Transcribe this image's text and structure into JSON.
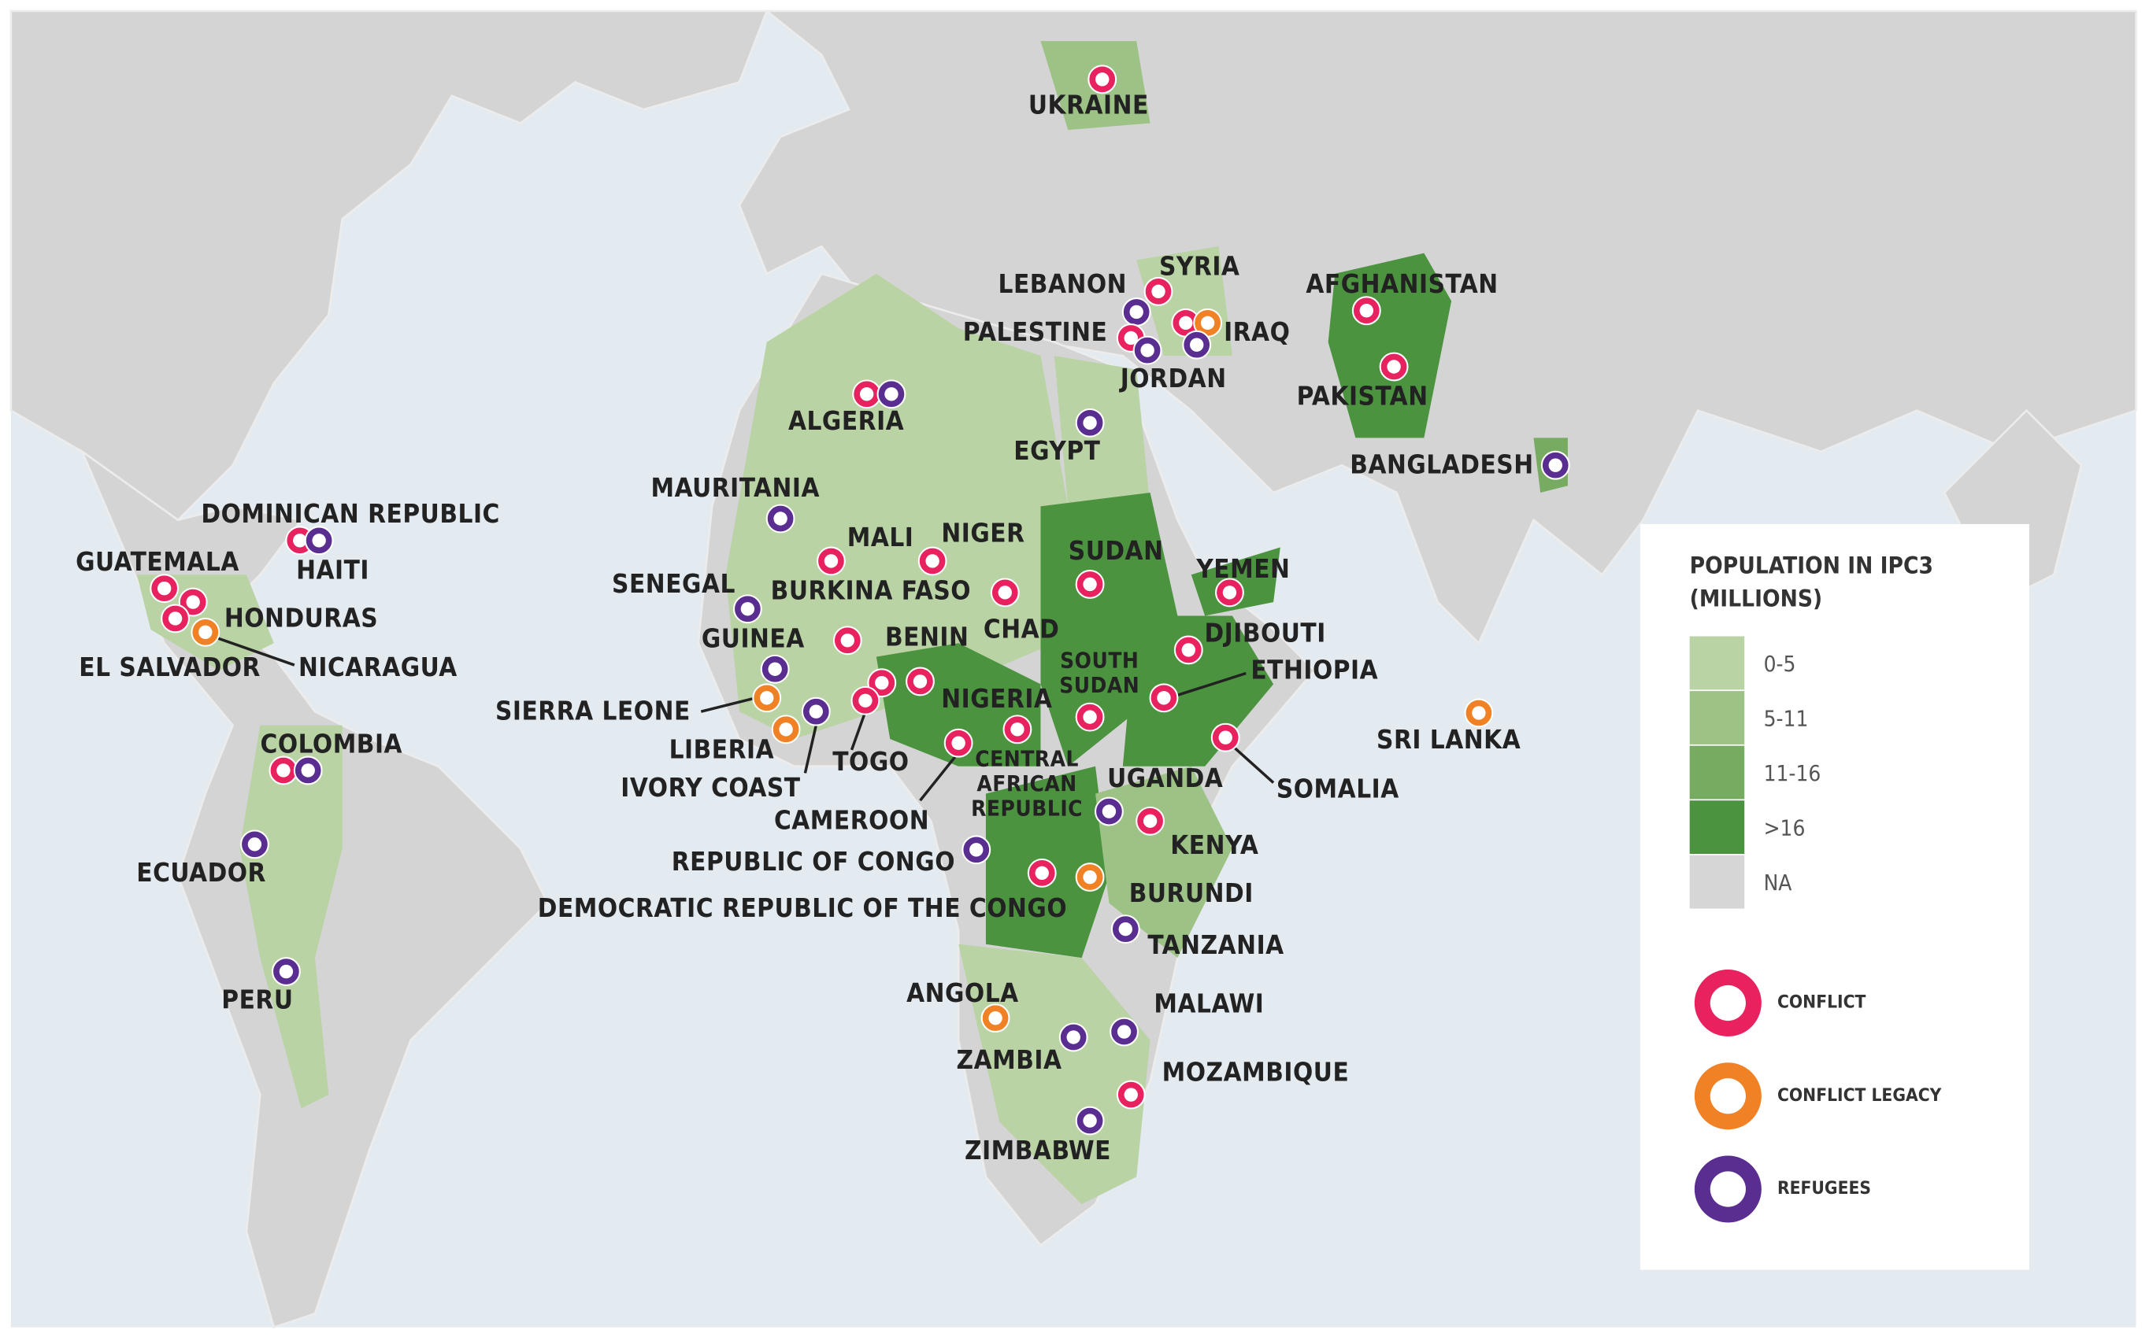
{
  "legend": {
    "title": "POPULATION IN IPC3 (MILLIONS)",
    "scale": [
      {
        "label": "0-5",
        "color": "#b9d3a4"
      },
      {
        "label": "5-11",
        "color": "#9dc286"
      },
      {
        "label": "11-16",
        "color": "#78ab62"
      },
      {
        "label": ">16",
        "color": "#4c9340"
      },
      {
        "label": "NA",
        "color": "#d6d6d6"
      }
    ],
    "markers": [
      {
        "label": "CONFLICT",
        "color": "#e8225f"
      },
      {
        "label": "CONFLICT LEGACY",
        "color": "#f08125"
      },
      {
        "label": "REFUGEES",
        "color": "#5a2d91"
      }
    ]
  },
  "countries": [
    {
      "label": "UKRAINE",
      "markers": [
        0
      ]
    },
    {
      "label": "LEBANON",
      "markers": [
        2
      ]
    },
    {
      "label": "SYRIA",
      "markers": [
        0
      ]
    },
    {
      "label": "IRAQ",
      "markers": [
        0,
        1
      ]
    },
    {
      "label": "PALESTINE",
      "markers": [
        0,
        2
      ]
    },
    {
      "label": "JORDAN",
      "markers": [
        2
      ]
    },
    {
      "label": "AFGHANISTAN",
      "markers": [
        0
      ]
    },
    {
      "label": "PAKISTAN",
      "markers": [
        0
      ]
    },
    {
      "label": "BANGLADESH",
      "markers": [
        2
      ]
    },
    {
      "label": "ALGERIA",
      "markers": [
        0,
        2
      ]
    },
    {
      "label": "EGYPT",
      "markers": [
        2
      ]
    },
    {
      "label": "MAURITANIA",
      "markers": [
        2
      ]
    },
    {
      "label": "DOMINICAN REPUBLIC",
      "markers": [
        0
      ]
    },
    {
      "label": "HAITI",
      "markers": [
        2
      ]
    },
    {
      "label": "GUATEMALA",
      "markers": [
        0
      ]
    },
    {
      "label": "HONDURAS",
      "markers": [
        0
      ]
    },
    {
      "label": "EL SALVADOR",
      "markers": [
        0
      ]
    },
    {
      "label": "NICARAGUA",
      "markers": [
        1
      ]
    },
    {
      "label": "MALI",
      "markers": [
        0
      ]
    },
    {
      "label": "NIGER",
      "markers": [
        0
      ]
    },
    {
      "label": "SUDAN",
      "markers": [
        0
      ]
    },
    {
      "label": "YEMEN",
      "markers": [
        0
      ]
    },
    {
      "label": "SENEGAL",
      "markers": [
        2
      ]
    },
    {
      "label": "BURKINA FASO",
      "markers": [
        0
      ]
    },
    {
      "label": "CHAD",
      "markers": [
        0
      ]
    },
    {
      "label": "BENIN",
      "markers": [
        0
      ]
    },
    {
      "label": "DJIBOUTI",
      "markers": [
        0
      ]
    },
    {
      "label": "GUINEA",
      "markers": [
        2
      ]
    },
    {
      "label": "SOUTH SUDAN",
      "markers": [
        0
      ]
    },
    {
      "label": "ETHIOPIA",
      "markers": [
        0
      ]
    },
    {
      "label": "SIERRA LEONE",
      "markers": [
        1
      ]
    },
    {
      "label": "LIBERIA",
      "markers": [
        1
      ]
    },
    {
      "label": "IVORY COAST",
      "markers": [
        2
      ]
    },
    {
      "label": "TOGO",
      "markers": [
        0
      ]
    },
    {
      "label": "NIGERIA",
      "markers": [
        0
      ]
    },
    {
      "label": "CAMEROON",
      "markers": [
        0
      ]
    },
    {
      "label": "CENTRAL AFRICAN REPUBLIC",
      "markers": [
        0
      ]
    },
    {
      "label": "SRI LANKA",
      "markers": [
        1
      ]
    },
    {
      "label": "COLOMBIA",
      "markers": [
        0,
        2
      ]
    },
    {
      "label": "UGANDA",
      "markers": [
        2
      ]
    },
    {
      "label": "SOMALIA",
      "markers": [
        0
      ]
    },
    {
      "label": "KENYA",
      "markers": [
        0
      ]
    },
    {
      "label": "ECUADOR",
      "markers": [
        2
      ]
    },
    {
      "label": "REPUBLIC OF CONGO",
      "markers": [
        2
      ]
    },
    {
      "label": "DEMOCRATIC REPUBLIC OF THE CONGO",
      "markers": [
        0
      ]
    },
    {
      "label": "BURUNDI",
      "markers": [
        1
      ]
    },
    {
      "label": "TANZANIA",
      "markers": [
        2
      ]
    },
    {
      "label": "PERU",
      "markers": [
        2
      ]
    },
    {
      "label": "ANGOLA",
      "markers": [
        1
      ]
    },
    {
      "label": "MALAWI",
      "markers": [
        2
      ]
    },
    {
      "label": "ZAMBIA",
      "markers": [
        2
      ]
    },
    {
      "label": "MOZAMBIQUE",
      "markers": [
        0
      ]
    },
    {
      "label": "ZIMBABWE",
      "markers": [
        2
      ]
    }
  ]
}
